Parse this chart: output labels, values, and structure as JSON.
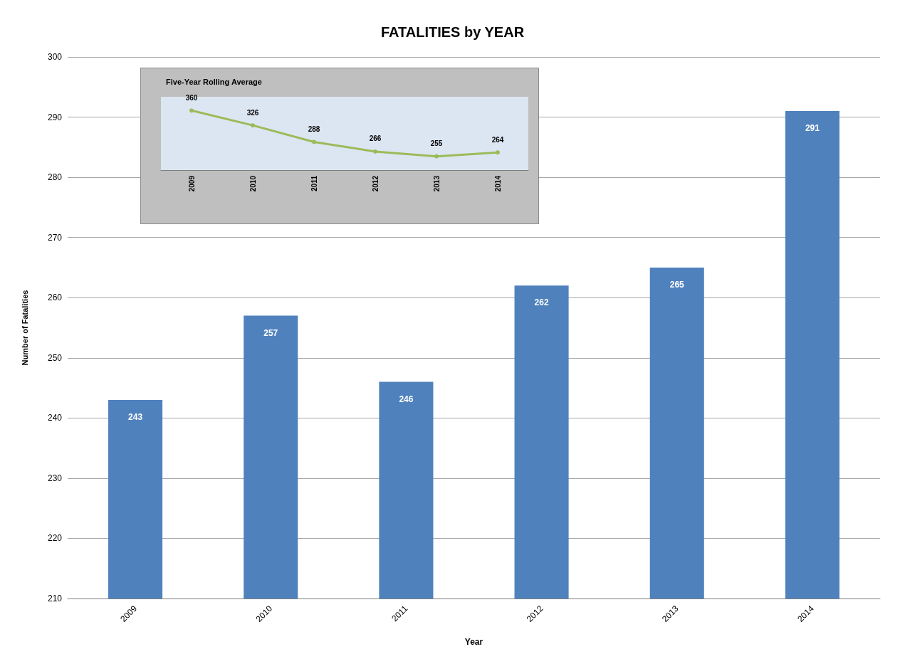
{
  "chart_data": [
    {
      "type": "bar",
      "title": "FATALITIES by YEAR",
      "xlabel": "Year",
      "ylabel": "Number of Fatalities",
      "categories": [
        "2009",
        "2010",
        "2011",
        "2012",
        "2013",
        "2014"
      ],
      "values": [
        243,
        257,
        246,
        262,
        265,
        291
      ],
      "color": "#4f81bd",
      "ylim": [
        210,
        300
      ],
      "yticks": [
        210,
        220,
        230,
        240,
        250,
        260,
        270,
        280,
        290,
        300
      ],
      "grid": "y",
      "data_labels": true
    },
    {
      "type": "line",
      "title": "Five-Year Rolling Average",
      "categories": [
        "2009",
        "2010",
        "2011",
        "2012",
        "2013",
        "2014"
      ],
      "values": [
        360,
        326,
        288,
        266,
        255,
        264
      ],
      "color": "#9bbb59",
      "marker": "circle",
      "tick_labels": "x",
      "data_labels": true
    }
  ]
}
